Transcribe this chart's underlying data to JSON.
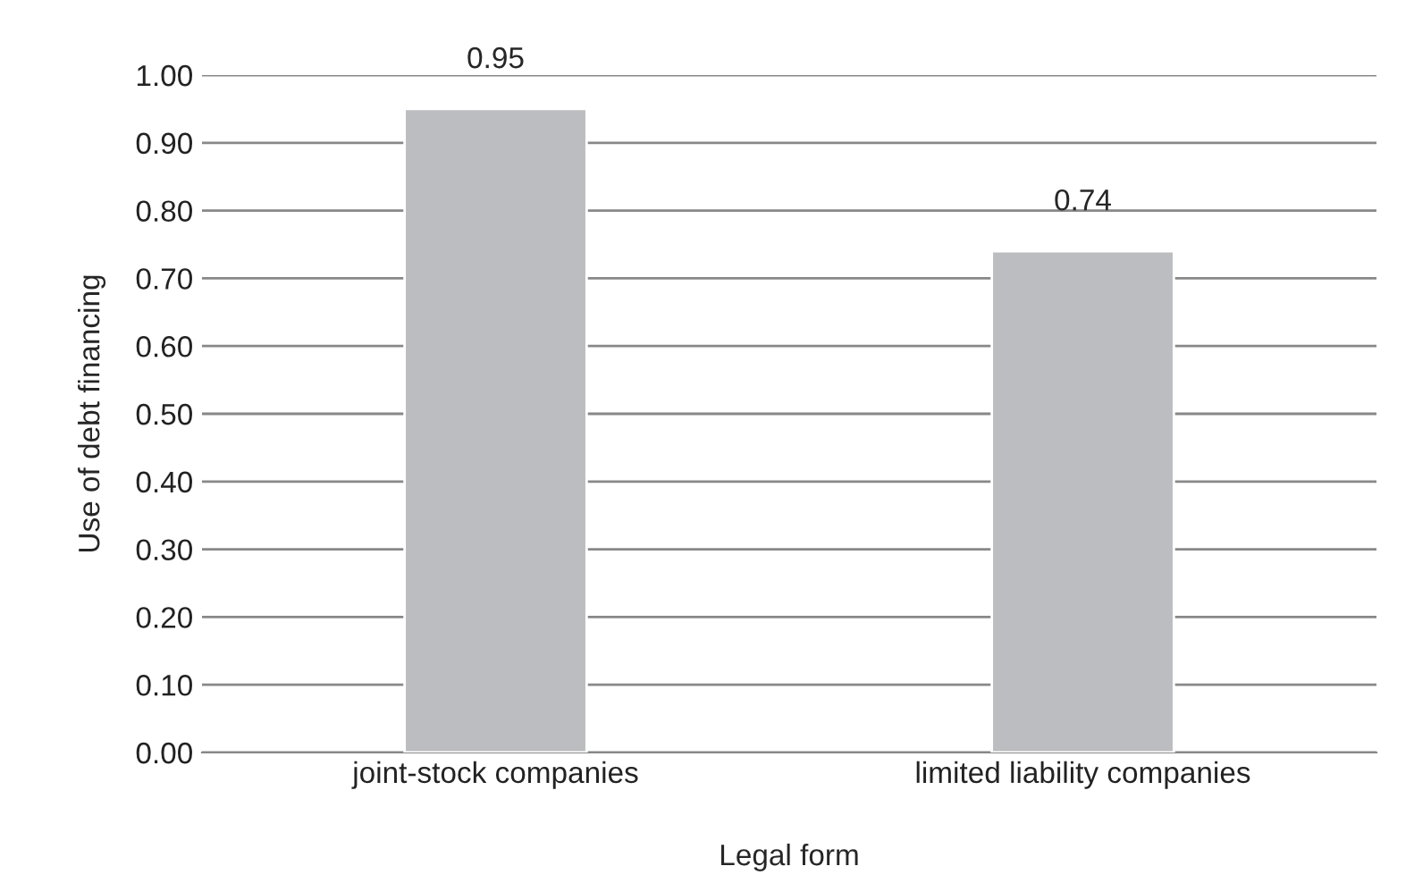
{
  "chart_data": {
    "type": "bar",
    "xlabel": "Legal form",
    "ylabel": "Use of debt financing",
    "categories": [
      "joint-stock companies",
      "limited liability companies"
    ],
    "values": [
      0.95,
      0.74
    ],
    "color": "#bcbdc0",
    "ylim": [
      0,
      1.0
    ],
    "yticks": [
      {
        "value": 0,
        "label": "0.00"
      },
      {
        "value": 0.1,
        "label": "0.10"
      },
      {
        "value": 0.2,
        "label": "0.20"
      },
      {
        "value": 0.3,
        "label": "0.30"
      },
      {
        "value": 0.4,
        "label": "0.40"
      },
      {
        "value": 0.5,
        "label": "0.50"
      },
      {
        "value": 0.6,
        "label": "0.60"
      },
      {
        "value": 0.7,
        "label": "0.70"
      },
      {
        "value": 0.8,
        "label": "0.80"
      },
      {
        "value": 0.9,
        "label": "0.90"
      },
      {
        "value": 1.0,
        "label": "1.00"
      }
    ],
    "grid": "y",
    "data_labels": true
  }
}
